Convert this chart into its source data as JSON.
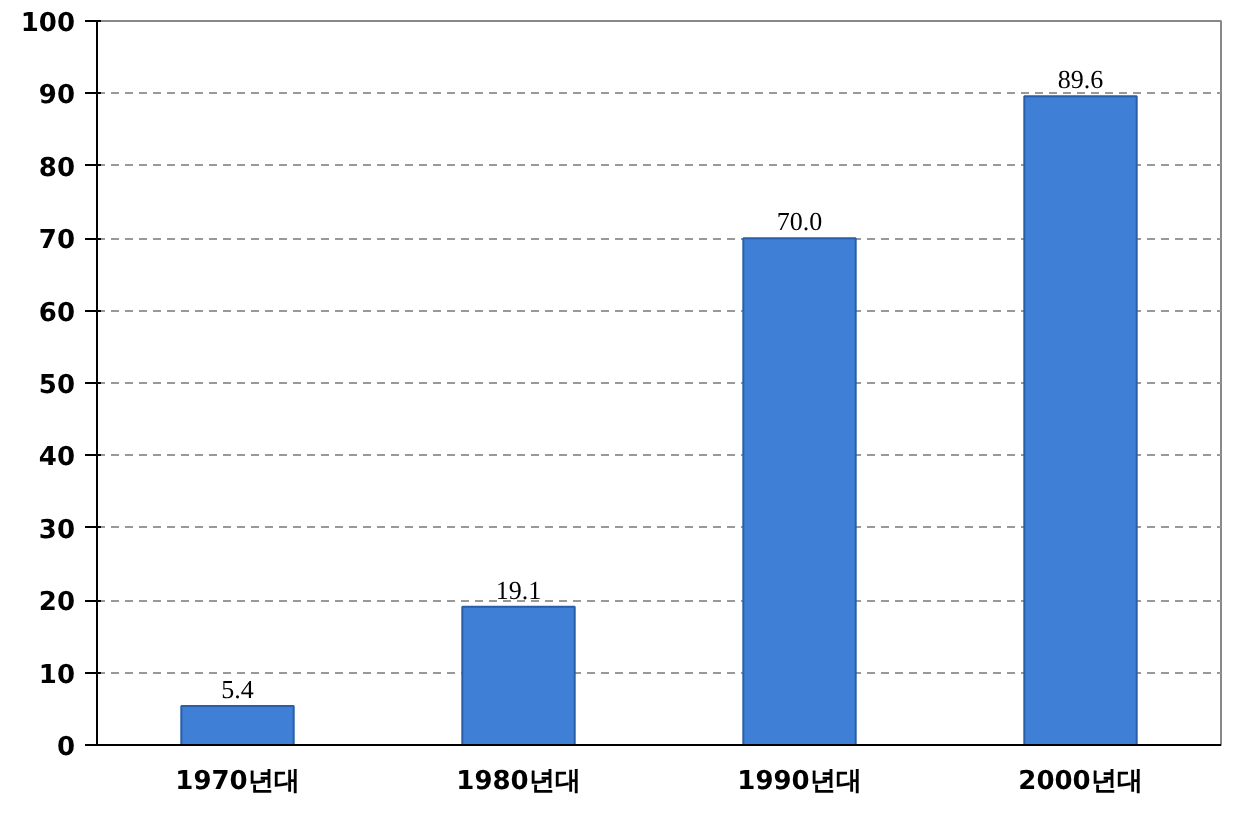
{
  "chart_data": {
    "type": "bar",
    "categories": [
      "1970년대",
      "1980년대",
      "1990년대",
      "2000년대"
    ],
    "values": [
      5.4,
      19.1,
      70.0,
      89.6
    ],
    "value_labels": [
      "5.4",
      "19.1",
      "70.0",
      "89.6"
    ],
    "color": "#3f7fd6",
    "ylim": [
      0,
      100
    ],
    "yticks": [
      0,
      10,
      20,
      30,
      40,
      50,
      60,
      70,
      80,
      90,
      100
    ],
    "grid": "y"
  }
}
